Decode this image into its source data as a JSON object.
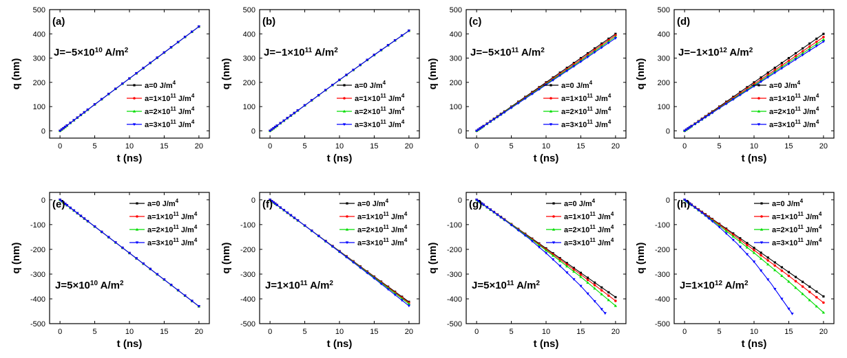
{
  "chart_data": [
    {
      "type": "line",
      "panel_label": "(a)",
      "j_label": "J=−5×10¹⁰ A/m²",
      "xlabel": "t (ns)",
      "ylabel": "q (nm)",
      "xlim": [
        -1.5,
        21.5
      ],
      "ylim": [
        -30,
        500
      ],
      "xticks": [
        0,
        5,
        10,
        15,
        20
      ],
      "yticks": [
        0,
        100,
        200,
        300,
        400,
        500
      ],
      "legend_position": "center-right",
      "series": [
        {
          "name": "a=0 J/m⁴",
          "color": "#000000",
          "x": [
            0,
            5,
            10,
            15,
            20
          ],
          "y": [
            0,
            109,
            216,
            323,
            430
          ]
        },
        {
          "name": "a=1×10¹¹ J/m⁴",
          "color": "#ff0000",
          "x": [
            0,
            5,
            10,
            15,
            20
          ],
          "y": [
            0,
            109,
            216,
            323,
            430
          ]
        },
        {
          "name": "a=2×10¹¹ J/m⁴",
          "color": "#00dd00",
          "x": [
            0,
            5,
            10,
            15,
            20
          ],
          "y": [
            0,
            109,
            216,
            323,
            430
          ]
        },
        {
          "name": "a=3×10¹¹ J/m⁴",
          "color": "#0000ff",
          "x": [
            0,
            5,
            10,
            15,
            20
          ],
          "y": [
            0,
            109,
            216,
            323,
            430
          ]
        }
      ]
    },
    {
      "type": "line",
      "panel_label": "(b)",
      "j_label": "J=−1×10¹¹ A/m²",
      "xlabel": "t (ns)",
      "ylabel": "q (nm)",
      "xlim": [
        -1.5,
        21.5
      ],
      "ylim": [
        -30,
        500
      ],
      "xticks": [
        0,
        5,
        10,
        15,
        20
      ],
      "yticks": [
        0,
        100,
        200,
        300,
        400,
        500
      ],
      "legend_position": "center-right",
      "series": [
        {
          "name": "a=0 J/m⁴",
          "color": "#000000",
          "x": [
            0,
            5,
            10,
            15,
            20
          ],
          "y": [
            0,
            105,
            210,
            313,
            413
          ]
        },
        {
          "name": "a=1×10¹¹ J/m⁴",
          "color": "#ff0000",
          "x": [
            0,
            5,
            10,
            15,
            20
          ],
          "y": [
            0,
            105,
            210,
            313,
            413
          ]
        },
        {
          "name": "a=2×10¹¹ J/m⁴",
          "color": "#00dd00",
          "x": [
            0,
            5,
            10,
            15,
            20
          ],
          "y": [
            0,
            105,
            210,
            313,
            413
          ]
        },
        {
          "name": "a=3×10¹¹ J/m⁴",
          "color": "#0000ff",
          "x": [
            0,
            5,
            10,
            15,
            20
          ],
          "y": [
            0,
            105,
            210,
            313,
            413
          ]
        }
      ]
    },
    {
      "type": "line",
      "panel_label": "(c)",
      "j_label": "J=−5×10¹¹ A/m²",
      "xlabel": "t (ns)",
      "ylabel": "q (nm)",
      "xlim": [
        -1.5,
        21.5
      ],
      "ylim": [
        -30,
        500
      ],
      "xticks": [
        0,
        5,
        10,
        15,
        20
      ],
      "yticks": [
        0,
        100,
        200,
        300,
        400,
        500
      ],
      "legend_position": "center-right",
      "series": [
        {
          "name": "a=0 J/m⁴",
          "color": "#000000",
          "x": [
            0,
            5,
            10,
            15,
            20
          ],
          "y": [
            0,
            100,
            200,
            300,
            400
          ]
        },
        {
          "name": "a=1×10¹¹ J/m⁴",
          "color": "#ff0000",
          "x": [
            0,
            5,
            10,
            15,
            20
          ],
          "y": [
            0,
            98,
            196,
            294,
            394
          ]
        },
        {
          "name": "a=2×10¹¹ J/m⁴",
          "color": "#00dd00",
          "x": [
            0,
            5,
            10,
            15,
            20
          ],
          "y": [
            0,
            97,
            193,
            289,
            388
          ]
        },
        {
          "name": "a=3×10¹¹ J/m⁴",
          "color": "#0000ff",
          "x": [
            0,
            5,
            10,
            15,
            20
          ],
          "y": [
            0,
            95,
            190,
            285,
            382
          ]
        }
      ]
    },
    {
      "type": "line",
      "panel_label": "(d)",
      "j_label": "J=−1×10¹² A/m²",
      "xlabel": "t (ns)",
      "ylabel": "q (nm)",
      "xlim": [
        -1.5,
        21.5
      ],
      "ylim": [
        -30,
        500
      ],
      "xticks": [
        0,
        5,
        10,
        15,
        20
      ],
      "yticks": [
        0,
        100,
        200,
        300,
        400,
        500
      ],
      "legend_position": "center-right",
      "series": [
        {
          "name": "a=0 J/m⁴",
          "color": "#000000",
          "x": [
            0,
            5,
            10,
            15,
            20
          ],
          "y": [
            0,
            100,
            200,
            300,
            400
          ]
        },
        {
          "name": "a=1×10¹¹ J/m⁴",
          "color": "#ff0000",
          "x": [
            0,
            5,
            10,
            15,
            20
          ],
          "y": [
            0,
            97,
            193,
            289,
            387
          ]
        },
        {
          "name": "a=2×10¹¹ J/m⁴",
          "color": "#00dd00",
          "x": [
            0,
            5,
            10,
            15,
            20
          ],
          "y": [
            0,
            95,
            188,
            282,
            377
          ]
        },
        {
          "name": "a=3×10¹¹ J/m⁴",
          "color": "#0000ff",
          "x": [
            0,
            5,
            10,
            15,
            20
          ],
          "y": [
            0,
            93,
            184,
            276,
            368
          ]
        }
      ]
    },
    {
      "type": "line",
      "panel_label": "(e)",
      "j_label": "J=5×10¹⁰ A/m²",
      "xlabel": "t (ns)",
      "ylabel": "q (nm)",
      "xlim": [
        -1.5,
        21.5
      ],
      "ylim": [
        -500,
        30
      ],
      "xticks": [
        0,
        5,
        10,
        15,
        20
      ],
      "yticks": [
        0,
        -100,
        -200,
        -300,
        -400,
        -500
      ],
      "legend_position": "top-right",
      "series": [
        {
          "name": "a=0 J/m⁴",
          "color": "#000000",
          "x": [
            0,
            5,
            10,
            15,
            20
          ],
          "y": [
            0,
            -108,
            -215,
            -322,
            -430
          ]
        },
        {
          "name": "a=1×10¹¹ J/m⁴",
          "color": "#ff0000",
          "x": [
            0,
            5,
            10,
            15,
            20
          ],
          "y": [
            0,
            -108,
            -215,
            -322,
            -430
          ]
        },
        {
          "name": "a=2×10¹¹ J/m⁴",
          "color": "#00dd00",
          "x": [
            0,
            5,
            10,
            15,
            20
          ],
          "y": [
            0,
            -108,
            -215,
            -322,
            -430
          ]
        },
        {
          "name": "a=3×10¹¹ J/m⁴",
          "color": "#0000ff",
          "x": [
            0,
            5,
            10,
            15,
            20
          ],
          "y": [
            0,
            -108,
            -215,
            -322,
            -430
          ]
        }
      ]
    },
    {
      "type": "line",
      "panel_label": "(f)",
      "j_label": "J=1×10¹¹ A/m²",
      "xlabel": "t (ns)",
      "ylabel": "q (nm)",
      "xlim": [
        -1.5,
        21.5
      ],
      "ylim": [
        -500,
        30
      ],
      "xticks": [
        0,
        5,
        10,
        15,
        20
      ],
      "yticks": [
        0,
        -100,
        -200,
        -300,
        -400,
        -500
      ],
      "legend_position": "top-right",
      "series": [
        {
          "name": "a=0 J/m⁴",
          "color": "#000000",
          "x": [
            0,
            5,
            10,
            15,
            20
          ],
          "y": [
            0,
            -104,
            -207,
            -310,
            -412
          ]
        },
        {
          "name": "a=1×10¹¹ J/m⁴",
          "color": "#ff0000",
          "x": [
            0,
            5,
            10,
            15,
            20
          ],
          "y": [
            0,
            -104,
            -208,
            -312,
            -416
          ]
        },
        {
          "name": "a=2×10¹¹ J/m⁴",
          "color": "#00dd00",
          "x": [
            0,
            5,
            10,
            15,
            20
          ],
          "y": [
            0,
            -104,
            -209,
            -314,
            -420
          ]
        },
        {
          "name": "a=3×10¹¹ J/m⁴",
          "color": "#0000ff",
          "x": [
            0,
            5,
            10,
            15,
            20
          ],
          "y": [
            0,
            -104,
            -210,
            -317,
            -428
          ]
        }
      ]
    },
    {
      "type": "line",
      "panel_label": "(g)",
      "j_label": "J=5×10¹¹ A/m²",
      "xlabel": "t (ns)",
      "ylabel": "q (nm)",
      "xlim": [
        -1.5,
        21.5
      ],
      "ylim": [
        -500,
        30
      ],
      "xticks": [
        0,
        5,
        10,
        15,
        20
      ],
      "yticks": [
        0,
        -100,
        -200,
        -300,
        -400,
        -500
      ],
      "legend_position": "top-right",
      "series": [
        {
          "name": "a=0 J/m⁴",
          "color": "#000000",
          "x": [
            0,
            5,
            10,
            15,
            20
          ],
          "y": [
            0,
            -98,
            -196,
            -295,
            -393
          ]
        },
        {
          "name": "a=1×10¹¹ J/m⁴",
          "color": "#ff0000",
          "x": [
            0,
            5,
            10,
            15,
            20
          ],
          "y": [
            0,
            -99,
            -200,
            -302,
            -408
          ]
        },
        {
          "name": "a=2×10¹¹ J/m⁴",
          "color": "#00dd00",
          "x": [
            0,
            5,
            10,
            15,
            20
          ],
          "y": [
            0,
            -100,
            -204,
            -311,
            -428
          ]
        },
        {
          "name": "a=3×10¹¹ J/m⁴",
          "color": "#0000ff",
          "x": [
            0,
            2.5,
            5,
            7.5,
            10,
            12.5,
            15,
            17.5,
            18.5
          ],
          "y": [
            0,
            -50,
            -102,
            -155,
            -215,
            -280,
            -348,
            -425,
            -458
          ]
        }
      ]
    },
    {
      "type": "line",
      "panel_label": "(h)",
      "j_label": "J=1×10¹² A/m²",
      "xlabel": "t (ns)",
      "ylabel": "q (nm)",
      "xlim": [
        -1.5,
        21.5
      ],
      "ylim": [
        -500,
        30
      ],
      "xticks": [
        0,
        5,
        10,
        15,
        20
      ],
      "yticks": [
        0,
        -100,
        -200,
        -300,
        -400,
        -500
      ],
      "legend_position": "top-right",
      "series": [
        {
          "name": "a=0 J/m⁴",
          "color": "#000000",
          "x": [
            0,
            5,
            10,
            15,
            20
          ],
          "y": [
            0,
            -97,
            -194,
            -292,
            -390
          ]
        },
        {
          "name": "a=1×10¹¹ J/m⁴",
          "color": "#ff0000",
          "x": [
            0,
            5,
            10,
            15,
            20
          ],
          "y": [
            0,
            -100,
            -203,
            -307,
            -415
          ]
        },
        {
          "name": "a=2×10¹¹ J/m⁴",
          "color": "#00dd00",
          "x": [
            0,
            5,
            10,
            15,
            20
          ],
          "y": [
            0,
            -104,
            -214,
            -330,
            -455
          ]
        },
        {
          "name": "a=3×10¹¹ J/m⁴",
          "color": "#0000ff",
          "x": [
            0,
            2.5,
            5,
            7.5,
            10,
            12.5,
            14,
            15.5
          ],
          "y": [
            0,
            -52,
            -110,
            -175,
            -250,
            -340,
            -400,
            -460
          ]
        }
      ]
    }
  ]
}
